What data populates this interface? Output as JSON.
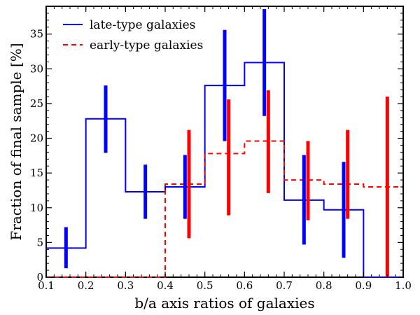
{
  "chart_data": {
    "type": "histogram-step",
    "xlabel": "b/a axis ratios of galaxies",
    "ylabel": "Fraction of final sample [%]",
    "xlim": [
      0.1,
      1.0
    ],
    "ylim": [
      0,
      39
    ],
    "xticks": [
      0.1,
      0.2,
      0.3,
      0.4,
      0.5,
      0.6,
      0.7,
      0.8,
      0.9,
      1.0
    ],
    "xtick_labels": [
      "0.1",
      "0.2",
      "0.3",
      "0.4",
      "0.5",
      "0.6",
      "0.7",
      "0.8",
      "0.9",
      "1.0"
    ],
    "yticks": [
      0,
      5,
      10,
      15,
      20,
      25,
      30,
      35
    ],
    "ytick_labels": [
      "0",
      "5",
      "10",
      "15",
      "20",
      "25",
      "30",
      "35"
    ],
    "bin_edges": [
      0.1,
      0.2,
      0.3,
      0.4,
      0.5,
      0.6,
      0.7,
      0.8,
      0.9,
      1.0
    ],
    "legend_position": "top-left",
    "series": [
      {
        "name": "late-type galaxies",
        "color": "#0000ff",
        "linestyle": "solid",
        "values": [
          4.2,
          22.8,
          12.3,
          13.0,
          27.6,
          30.9,
          11.1,
          9.7,
          0
        ],
        "error_x": [
          0.15,
          0.25,
          0.35,
          0.45,
          0.55,
          0.65,
          0.75,
          0.85
        ],
        "error_low": [
          1.3,
          17.9,
          8.4,
          8.4,
          19.6,
          23.2,
          4.7,
          2.8
        ],
        "error_high": [
          7.2,
          27.6,
          16.2,
          17.6,
          35.6,
          38.6,
          17.6,
          16.6
        ]
      },
      {
        "name": "early-type galaxies",
        "color": "#ff0000",
        "linestyle": "dashed",
        "values": [
          0,
          0,
          0,
          13.4,
          17.8,
          19.6,
          14.0,
          13.4,
          13.0
        ],
        "error_x": [
          0.46,
          0.56,
          0.66,
          0.76,
          0.86,
          0.96
        ],
        "error_low": [
          5.6,
          8.9,
          12.1,
          8.2,
          8.4,
          0
        ],
        "error_high": [
          21.2,
          25.6,
          26.9,
          19.6,
          21.2,
          26.0
        ]
      }
    ]
  }
}
